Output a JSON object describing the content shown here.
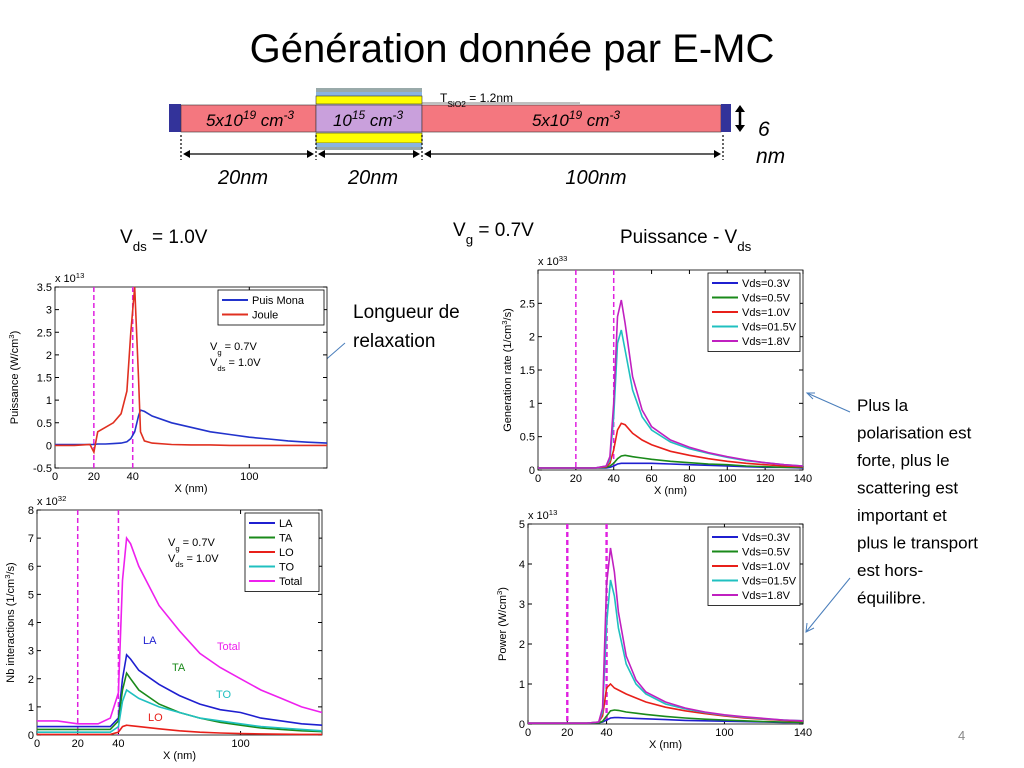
{
  "title": "Génération donnée par E-MC",
  "device": {
    "tox": [
      "T",
      "SiO2",
      " = 1.2nm"
    ],
    "regions": [
      [
        "5x10",
        "19",
        " cm",
        "-3"
      ],
      [
        "10",
        "15",
        " cm",
        "-3"
      ],
      [
        "5x10",
        "19",
        " cm",
        "-3"
      ]
    ],
    "lengths": [
      "20nm",
      "20nm",
      "100nm"
    ],
    "thickness": [
      "6",
      "nm"
    ]
  },
  "vds_label": [
    "V",
    "ds",
    " = 1.0V"
  ],
  "vg_label": [
    "V",
    "g",
    " = 0.7V"
  ],
  "puissance_label": [
    "Puissance - V",
    "ds"
  ],
  "annotation_relaxation": [
    "Longueur de",
    "relaxation"
  ],
  "annotation_polarisation": [
    "Plus la",
    "polarisation est",
    "forte, plus le",
    "scattering est",
    "important et",
    "plus le transport",
    "est hors-",
    "équilibre."
  ],
  "page_number": "4",
  "chart_data": [
    {
      "type": "line",
      "multiplier": [
        "x 10",
        "13"
      ],
      "ylabel": [
        "Puissance (W/cm",
        "3",
        ")"
      ],
      "xlabel": "X (nm)",
      "xlim": [
        0,
        140
      ],
      "xticks": [
        0,
        20,
        40,
        100
      ],
      "ylim": [
        -0.5,
        3.5
      ],
      "yticks": [
        -0.5,
        0,
        0.5,
        1,
        1.5,
        2,
        2.5,
        3,
        3.5
      ],
      "vlines": [
        20,
        40
      ],
      "vline_color": "#e020e0",
      "legend": "upper right",
      "grid": false,
      "notes": [
        [
          "V",
          "g",
          " = 0.7V"
        ],
        [
          "V",
          "ds",
          " = 1.0V"
        ]
      ],
      "x": [
        0,
        10,
        18,
        20,
        22,
        26,
        30,
        34,
        37,
        39,
        41,
        43,
        44,
        46,
        50,
        60,
        70,
        80,
        90,
        100,
        110,
        120,
        130,
        140
      ],
      "series": [
        {
          "name": "Puis Mona",
          "color": "#2233cc",
          "values": [
            0.02,
            0.02,
            0.02,
            0.02,
            0.03,
            0.03,
            0.04,
            0.05,
            0.08,
            0.15,
            0.3,
            0.65,
            0.78,
            0.75,
            0.65,
            0.5,
            0.4,
            0.3,
            0.24,
            0.18,
            0.14,
            0.1,
            0.07,
            0.05
          ]
        },
        {
          "name": "Joule",
          "color": "#e03020",
          "values": [
            0,
            0,
            0.02,
            -0.15,
            0.3,
            0.4,
            0.5,
            0.7,
            1.2,
            2.5,
            3.5,
            1.5,
            0.3,
            0.1,
            0.05,
            0.02,
            0.01,
            0.01,
            0,
            0,
            0,
            0,
            0,
            0
          ]
        }
      ]
    },
    {
      "type": "line",
      "multiplier": [
        "x 10",
        "33"
      ],
      "ylabel": [
        "Generation rate (1/cm",
        "3",
        "/s)"
      ],
      "xlabel": "X (nm)",
      "xlim": [
        0,
        140
      ],
      "xticks": [
        0,
        20,
        40,
        60,
        80,
        100,
        120,
        140
      ],
      "ylim": [
        0,
        3
      ],
      "yticks": [
        0,
        0.5,
        1,
        1.5,
        2,
        2.5
      ],
      "vlines": [
        20,
        40
      ],
      "vline_color": "#e020e0",
      "legend": "upper right",
      "grid": false,
      "x": [
        0,
        10,
        20,
        30,
        36,
        38,
        40,
        42,
        44,
        46,
        50,
        55,
        60,
        70,
        80,
        90,
        100,
        110,
        120,
        130,
        140
      ],
      "series": [
        {
          "name": "Vds=0.3V",
          "color": "#1f1fd0",
          "values": [
            0.03,
            0.03,
            0.03,
            0.03,
            0.03,
            0.04,
            0.06,
            0.09,
            0.1,
            0.1,
            0.1,
            0.1,
            0.1,
            0.09,
            0.08,
            0.07,
            0.06,
            0.05,
            0.04,
            0.04,
            0.03
          ]
        },
        {
          "name": "Vds=0.5V",
          "color": "#1a8a1a",
          "values": [
            0.03,
            0.03,
            0.03,
            0.03,
            0.04,
            0.06,
            0.1,
            0.17,
            0.21,
            0.22,
            0.2,
            0.18,
            0.16,
            0.13,
            0.11,
            0.09,
            0.08,
            0.06,
            0.05,
            0.04,
            0.04
          ]
        },
        {
          "name": "Vds=1.0V",
          "color": "#e8201a",
          "values": [
            0.03,
            0.03,
            0.03,
            0.03,
            0.05,
            0.1,
            0.3,
            0.6,
            0.7,
            0.68,
            0.55,
            0.45,
            0.38,
            0.28,
            0.22,
            0.17,
            0.13,
            0.1,
            0.08,
            0.06,
            0.05
          ]
        },
        {
          "name": "Vds=01.5V",
          "color": "#20c0c0",
          "values": [
            0.03,
            0.03,
            0.03,
            0.03,
            0.06,
            0.15,
            0.8,
            1.9,
            2.1,
            1.8,
            1.2,
            0.8,
            0.6,
            0.42,
            0.32,
            0.25,
            0.19,
            0.14,
            0.11,
            0.08,
            0.06
          ]
        },
        {
          "name": "Vds=1.8V",
          "color": "#c020c0",
          "values": [
            0.03,
            0.03,
            0.03,
            0.03,
            0.06,
            0.2,
            1.0,
            2.3,
            2.55,
            2.2,
            1.4,
            0.9,
            0.65,
            0.45,
            0.34,
            0.26,
            0.2,
            0.15,
            0.11,
            0.08,
            0.06
          ]
        }
      ]
    },
    {
      "type": "line",
      "multiplier": [
        "x 10",
        "32"
      ],
      "ylabel": [
        "Nb interactions (1/cm",
        "3",
        "/s)"
      ],
      "xlabel": "X (nm)",
      "xlim": [
        0,
        140
      ],
      "xticks": [
        0,
        20,
        40,
        100
      ],
      "ylim": [
        0,
        8
      ],
      "yticks": [
        0,
        1,
        2,
        3,
        4,
        5,
        6,
        7,
        8
      ],
      "vlines": [
        20,
        40
      ],
      "vline_color": "#e020e0",
      "legend": "upper right",
      "grid": false,
      "notes": [
        [
          "V",
          "g",
          " = 0.7V"
        ],
        [
          "V",
          "ds",
          " = 1.0V"
        ]
      ],
      "curve_labels": true,
      "x": [
        0,
        10,
        20,
        30,
        36,
        40,
        42,
        44,
        46,
        50,
        60,
        70,
        80,
        90,
        100,
        110,
        120,
        130,
        140
      ],
      "series": [
        {
          "name": "LA",
          "color": "#1f1fd0",
          "values": [
            0.3,
            0.3,
            0.3,
            0.3,
            0.3,
            0.6,
            2,
            2.85,
            2.7,
            2.3,
            1.8,
            1.4,
            1.1,
            0.9,
            0.8,
            0.6,
            0.5,
            0.4,
            0.35
          ]
        },
        {
          "name": "TA",
          "color": "#1a8a1a",
          "values": [
            0.2,
            0.2,
            0.2,
            0.2,
            0.2,
            0.5,
            1.6,
            2.2,
            2.0,
            1.6,
            1.1,
            0.8,
            0.6,
            0.45,
            0.35,
            0.25,
            0.2,
            0.15,
            0.12
          ]
        },
        {
          "name": "LO",
          "color": "#e8201a",
          "values": [
            0.02,
            0.02,
            0.02,
            0.02,
            0.02,
            0.1,
            0.3,
            0.35,
            0.33,
            0.3,
            0.22,
            0.15,
            0.1,
            0.07,
            0.05,
            0.04,
            0.03,
            0.02,
            0.02
          ]
        },
        {
          "name": "TO",
          "color": "#20c0c0",
          "values": [
            0.1,
            0.1,
            0.1,
            0.1,
            0.1,
            0.3,
            1.2,
            1.6,
            1.5,
            1.3,
            1.0,
            0.8,
            0.6,
            0.5,
            0.4,
            0.3,
            0.25,
            0.2,
            0.15
          ]
        },
        {
          "name": "Total",
          "color": "#ee20ee",
          "values": [
            0.5,
            0.5,
            0.4,
            0.4,
            0.6,
            1.5,
            5.5,
            7.0,
            6.8,
            6.0,
            4.6,
            3.7,
            2.9,
            2.4,
            2.0,
            1.6,
            1.3,
            1.0,
            0.8
          ]
        }
      ]
    },
    {
      "type": "line",
      "multiplier": [
        "x 10",
        "13"
      ],
      "ylabel": [
        "Power (W/cm",
        "3",
        ")"
      ],
      "xlabel": "X (nm)",
      "xlim": [
        0,
        140
      ],
      "xticks": [
        0,
        20,
        40,
        100,
        140
      ],
      "ylim": [
        0,
        5
      ],
      "yticks": [
        0,
        1,
        2,
        3,
        4,
        5
      ],
      "vlines": [
        20,
        40
      ],
      "vline_color": "#e020e0",
      "legend": "upper right",
      "grid": false,
      "x": [
        0,
        10,
        20,
        30,
        36,
        38,
        40,
        42,
        44,
        46,
        50,
        55,
        60,
        70,
        80,
        90,
        100,
        110,
        120,
        130,
        140
      ],
      "series": [
        {
          "name": "Vds=0.3V",
          "color": "#1f1fd0",
          "values": [
            0.02,
            0.02,
            0.02,
            0.02,
            0.03,
            0.05,
            0.1,
            0.15,
            0.16,
            0.16,
            0.15,
            0.14,
            0.13,
            0.11,
            0.09,
            0.08,
            0.07,
            0.06,
            0.05,
            0.04,
            0.04
          ]
        },
        {
          "name": "Vds=0.5V",
          "color": "#1a8a1a",
          "values": [
            0.02,
            0.02,
            0.02,
            0.02,
            0.03,
            0.07,
            0.2,
            0.33,
            0.35,
            0.34,
            0.3,
            0.27,
            0.24,
            0.19,
            0.15,
            0.12,
            0.1,
            0.08,
            0.06,
            0.05,
            0.04
          ]
        },
        {
          "name": "Vds=1.0V",
          "color": "#e8201a",
          "values": [
            0.02,
            0.02,
            0.02,
            0.02,
            0.05,
            0.2,
            0.9,
            1.0,
            0.9,
            0.85,
            0.75,
            0.65,
            0.55,
            0.42,
            0.33,
            0.26,
            0.2,
            0.15,
            0.12,
            0.09,
            0.07
          ]
        },
        {
          "name": "Vds=01.5V",
          "color": "#20c0c0",
          "values": [
            0.02,
            0.02,
            0.02,
            0.02,
            0.05,
            0.3,
            2.5,
            3.6,
            3.2,
            2.4,
            1.5,
            1.0,
            0.75,
            0.5,
            0.38,
            0.29,
            0.22,
            0.17,
            0.13,
            0.1,
            0.08
          ]
        },
        {
          "name": "Vds=1.8V",
          "color": "#c020c0",
          "values": [
            0.02,
            0.02,
            0.02,
            0.02,
            0.05,
            0.4,
            3.5,
            4.4,
            3.8,
            2.8,
            1.7,
            1.1,
            0.8,
            0.55,
            0.4,
            0.3,
            0.23,
            0.18,
            0.14,
            0.1,
            0.08
          ]
        }
      ]
    }
  ]
}
